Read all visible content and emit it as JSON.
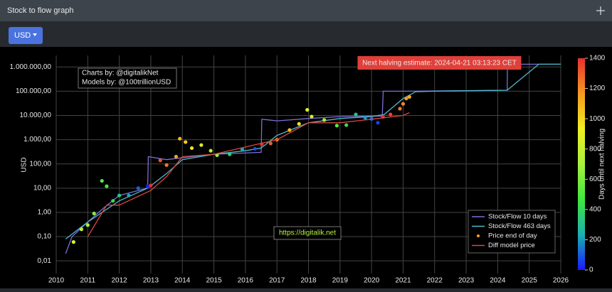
{
  "header": {
    "title": "Stock to flow graph"
  },
  "toolbar": {
    "currency": "USD"
  },
  "chart_data": {
    "type": "line",
    "y_label": "USD",
    "log_y": true,
    "grid": true,
    "legend": "lower right",
    "annotations": {
      "halving": "Next halving estimate: 2024-04-21 03:13:23 CET",
      "credits": [
        "Charts by: @digitalikNet",
        "Models by: @100trillionUSD"
      ],
      "link": "https://digitalik.net"
    },
    "xlim": [
      2010,
      2026
    ],
    "xticks": [
      2010,
      2011,
      2012,
      2013,
      2014,
      2015,
      2016,
      2017,
      2018,
      2019,
      2020,
      2021,
      2022,
      2023,
      2024,
      2025,
      2026
    ],
    "ylim": [
      0.003,
      3000000
    ],
    "yticks": [
      {
        "value": 0.01,
        "label": "0,01"
      },
      {
        "value": 0.1,
        "label": "0,10"
      },
      {
        "value": 1,
        "label": "1,00"
      },
      {
        "value": 10,
        "label": "10,00"
      },
      {
        "value": 100,
        "label": "100,00"
      },
      {
        "value": 1000,
        "label": "1.000,00"
      },
      {
        "value": 10000,
        "label": "10.000,00"
      },
      {
        "value": 100000,
        "label": "100.000,00"
      },
      {
        "value": 1000000,
        "label": "1.000.000,00"
      }
    ],
    "colorbar": {
      "title": "Days until next halving",
      "lim": [
        0,
        1400
      ],
      "ticks": [
        0,
        200,
        400,
        600,
        800,
        1000,
        1200,
        1400
      ],
      "colors": [
        "#1a1aff",
        "#1ab0b0",
        "#3ee83e",
        "#a8f040",
        "#f0f020",
        "#f59a20",
        "#e83030"
      ]
    },
    "series": [
      {
        "name": "Stock/Flow 10 days",
        "color": "#7a6fd6",
        "style": "line",
        "x": [
          2010.3,
          2010.5,
          2011,
          2011.5,
          2012,
          2012.9,
          2012.92,
          2013.5,
          2014,
          2015,
          2016.5,
          2016.52,
          2017,
          2018,
          2019,
          2020.34,
          2020.37,
          2021.2,
          2024.3,
          2024.31,
          2026
        ],
        "values": [
          0.02,
          0.1,
          0.4,
          1.5,
          5,
          10,
          200,
          150,
          180,
          250,
          300,
          7000,
          6000,
          7500,
          9000,
          9500,
          100000,
          100000,
          110000,
          1300000,
          1300000
        ]
      },
      {
        "name": "Stock/Flow 463 days",
        "color": "#4fb8cc",
        "style": "line",
        "x": [
          2010.3,
          2011,
          2012,
          2012.9,
          2013.5,
          2014,
          2015,
          2016,
          2016.5,
          2017,
          2018,
          2019,
          2020,
          2020.4,
          2021,
          2021.4,
          2022,
          2024.3,
          2025.3,
          2026
        ],
        "values": [
          0.08,
          0.4,
          3,
          10,
          40,
          150,
          250,
          350,
          450,
          1500,
          5000,
          7500,
          9000,
          11000,
          50000,
          95000,
          100000,
          110000,
          1300000,
          1300000
        ]
      },
      {
        "name": "Price end of day",
        "color": "#f5a030",
        "style": "dots",
        "x": [
          2010.55,
          2010.8,
          2011,
          2011.2,
          2011.45,
          2011.6,
          2011.8,
          2012,
          2012.3,
          2012.6,
          2012.9,
          2013,
          2013.3,
          2013.5,
          2013.8,
          2013.92,
          2014.1,
          2014.3,
          2014.6,
          2014.9,
          2015.1,
          2015.5,
          2015.9,
          2016.3,
          2016.52,
          2016.8,
          2017,
          2017.4,
          2017.7,
          2017.96,
          2018.1,
          2018.5,
          2018.9,
          2019.2,
          2019.5,
          2019.8,
          2020,
          2020.2,
          2020.36,
          2020.6,
          2020.9,
          2021,
          2021.1,
          2021.2
        ],
        "values": [
          0.06,
          0.2,
          0.3,
          0.9,
          20,
          12,
          3,
          5,
          5,
          10,
          12,
          13,
          140,
          90,
          200,
          1100,
          800,
          450,
          600,
          350,
          230,
          250,
          400,
          420,
          650,
          700,
          1000,
          2500,
          4500,
          17000,
          9000,
          6500,
          3800,
          4000,
          11000,
          8000,
          7200,
          5000,
          8800,
          11000,
          19000,
          30000,
          50000,
          58000
        ],
        "days": [
          861,
          770,
          697,
          624,
          533,
          478,
          405,
          332,
          223,
          113,
          4,
          1431,
          1321,
          1248,
          1139,
          1095,
          1030,
          957,
          847,
          738,
          665,
          372,
          226,
          80,
          1402,
          1300,
          1227,
          1081,
          971,
          876,
          825,
          679,
          533,
          423,
          314,
          204,
          131,
          58,
          1438,
          1351,
          1241,
          1205,
          1168,
          1132
        ]
      },
      {
        "name": "Diff model price",
        "color": "#d9473f",
        "style": "line",
        "x": [
          2011,
          2011.6,
          2012,
          2013,
          2013.5,
          2014,
          2015,
          2016,
          2017,
          2018,
          2019,
          2020,
          2021,
          2021.2
        ],
        "values": [
          0.1,
          2,
          2,
          8,
          30,
          200,
          250,
          500,
          1000,
          5000,
          5000,
          7000,
          10000,
          13000
        ]
      }
    ]
  }
}
